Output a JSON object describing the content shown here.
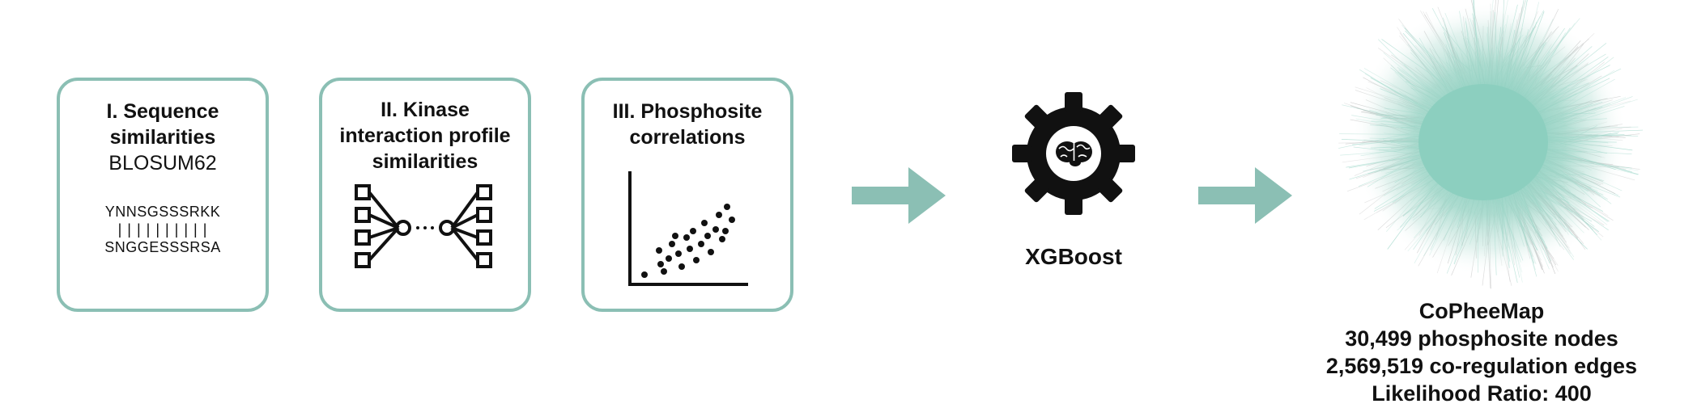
{
  "panels": [
    {
      "title_lines": [
        "I. Sequence",
        "similarities"
      ],
      "subtitle": "BLOSUM62",
      "alignment": {
        "top": "YNNSGSSSRKK",
        "match": "| | | | |   | | | | |",
        "bottom": "SNGGESSSRSA"
      }
    },
    {
      "title_lines": [
        "II. Kinase",
        "interaction profile",
        "similarities"
      ]
    },
    {
      "title_lines": [
        "III. Phosphosite",
        "correlations"
      ]
    }
  ],
  "model": {
    "label": "XGBoost",
    "icon": "gear-brain-icon"
  },
  "network": {
    "name": "CoPheeMap",
    "nodes_text": "30,499 phosphosite nodes",
    "edges_text": "2,569,519 co-regulation edges",
    "ratio_text": "Likelihood Ratio: 400",
    "color": "#8ccfbf"
  },
  "colors": {
    "accent": "#8bbfb4",
    "arrow": "#8bbfb4",
    "ink": "#111111"
  },
  "icons": [
    "network-nodes-icon",
    "scatter-plot-icon",
    "right-arrow-icon",
    "gear-brain-icon",
    "network-hairball-icon"
  ]
}
